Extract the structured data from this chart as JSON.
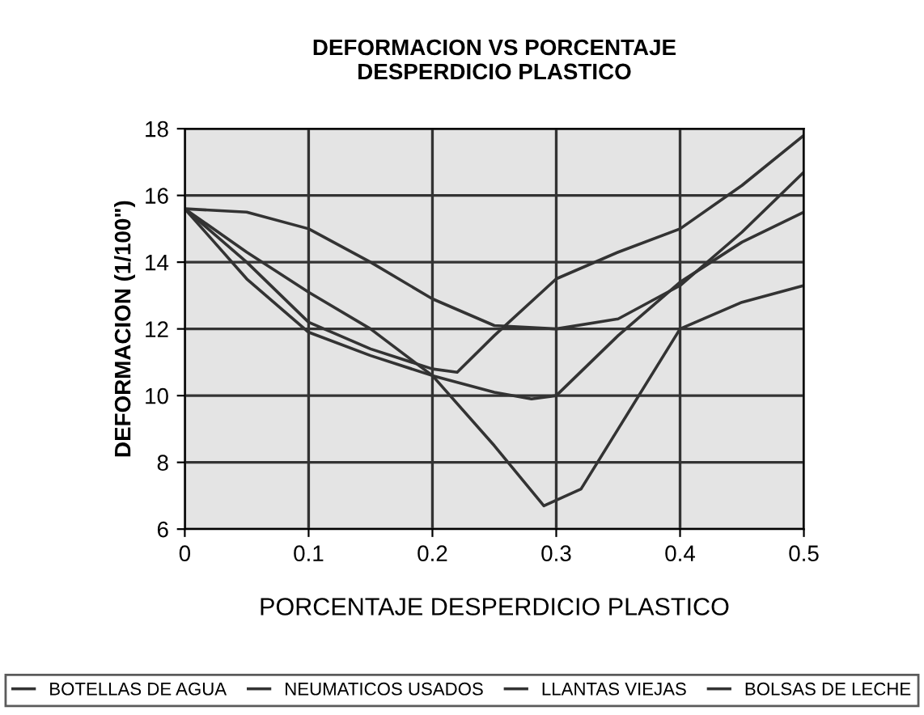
{
  "chart_data": {
    "type": "line",
    "title": "DEFORMACION VS PORCENTAJE\nDESPERDICIO PLASTICO",
    "xlabel": "PORCENTAJE DESPERDICIO PLASTICO",
    "ylabel": "DEFORMACION (1/100\")",
    "x": [
      0,
      0.05,
      0.1,
      0.15,
      0.2,
      0.25,
      0.3,
      0.35,
      0.4,
      0.45,
      0.5
    ],
    "series": [
      {
        "name": "BOTELLAS DE AGUA",
        "color": "#333333",
        "values": [
          15.6,
          15.5,
          15.0,
          14.0,
          12.9,
          12.1,
          12.0,
          12.3,
          13.3,
          14.9,
          16.7
        ]
      },
      {
        "name": "NEUMATICOS USADOS",
        "color": "#333333",
        "x": [
          0,
          0.05,
          0.1,
          0.15,
          0.2,
          0.22,
          0.25,
          0.3,
          0.35,
          0.4,
          0.45,
          0.5
        ],
        "values": [
          15.6,
          14.0,
          12.2,
          11.4,
          10.8,
          10.7,
          11.8,
          13.5,
          14.3,
          15.0,
          16.3,
          17.8
        ]
      },
      {
        "name": "LLANTAS VIEJAS",
        "color": "#333333",
        "x": [
          0,
          0.05,
          0.1,
          0.15,
          0.2,
          0.25,
          0.28,
          0.3,
          0.35,
          0.4,
          0.45,
          0.5
        ],
        "values": [
          15.6,
          13.5,
          11.9,
          11.2,
          10.6,
          10.1,
          9.9,
          10.0,
          11.8,
          13.4,
          14.6,
          15.5
        ]
      },
      {
        "name": "BOLSAS DE LECHE",
        "color": "#333333",
        "x": [
          0,
          0.05,
          0.1,
          0.15,
          0.2,
          0.25,
          0.29,
          0.32,
          0.35,
          0.4,
          0.45,
          0.5
        ],
        "values": [
          15.6,
          14.3,
          13.1,
          12.0,
          10.6,
          8.5,
          6.7,
          7.2,
          9.0,
          12.0,
          12.8,
          13.3
        ]
      }
    ],
    "xlim": [
      0,
      0.5
    ],
    "ylim": [
      6,
      18
    ],
    "xticks": [
      0,
      0.1,
      0.2,
      0.3,
      0.4,
      0.5
    ],
    "yticks": [
      6,
      8,
      10,
      12,
      14,
      16,
      18
    ],
    "grid": true,
    "legend": "bottom",
    "marker": "none",
    "line_style": "solid"
  }
}
